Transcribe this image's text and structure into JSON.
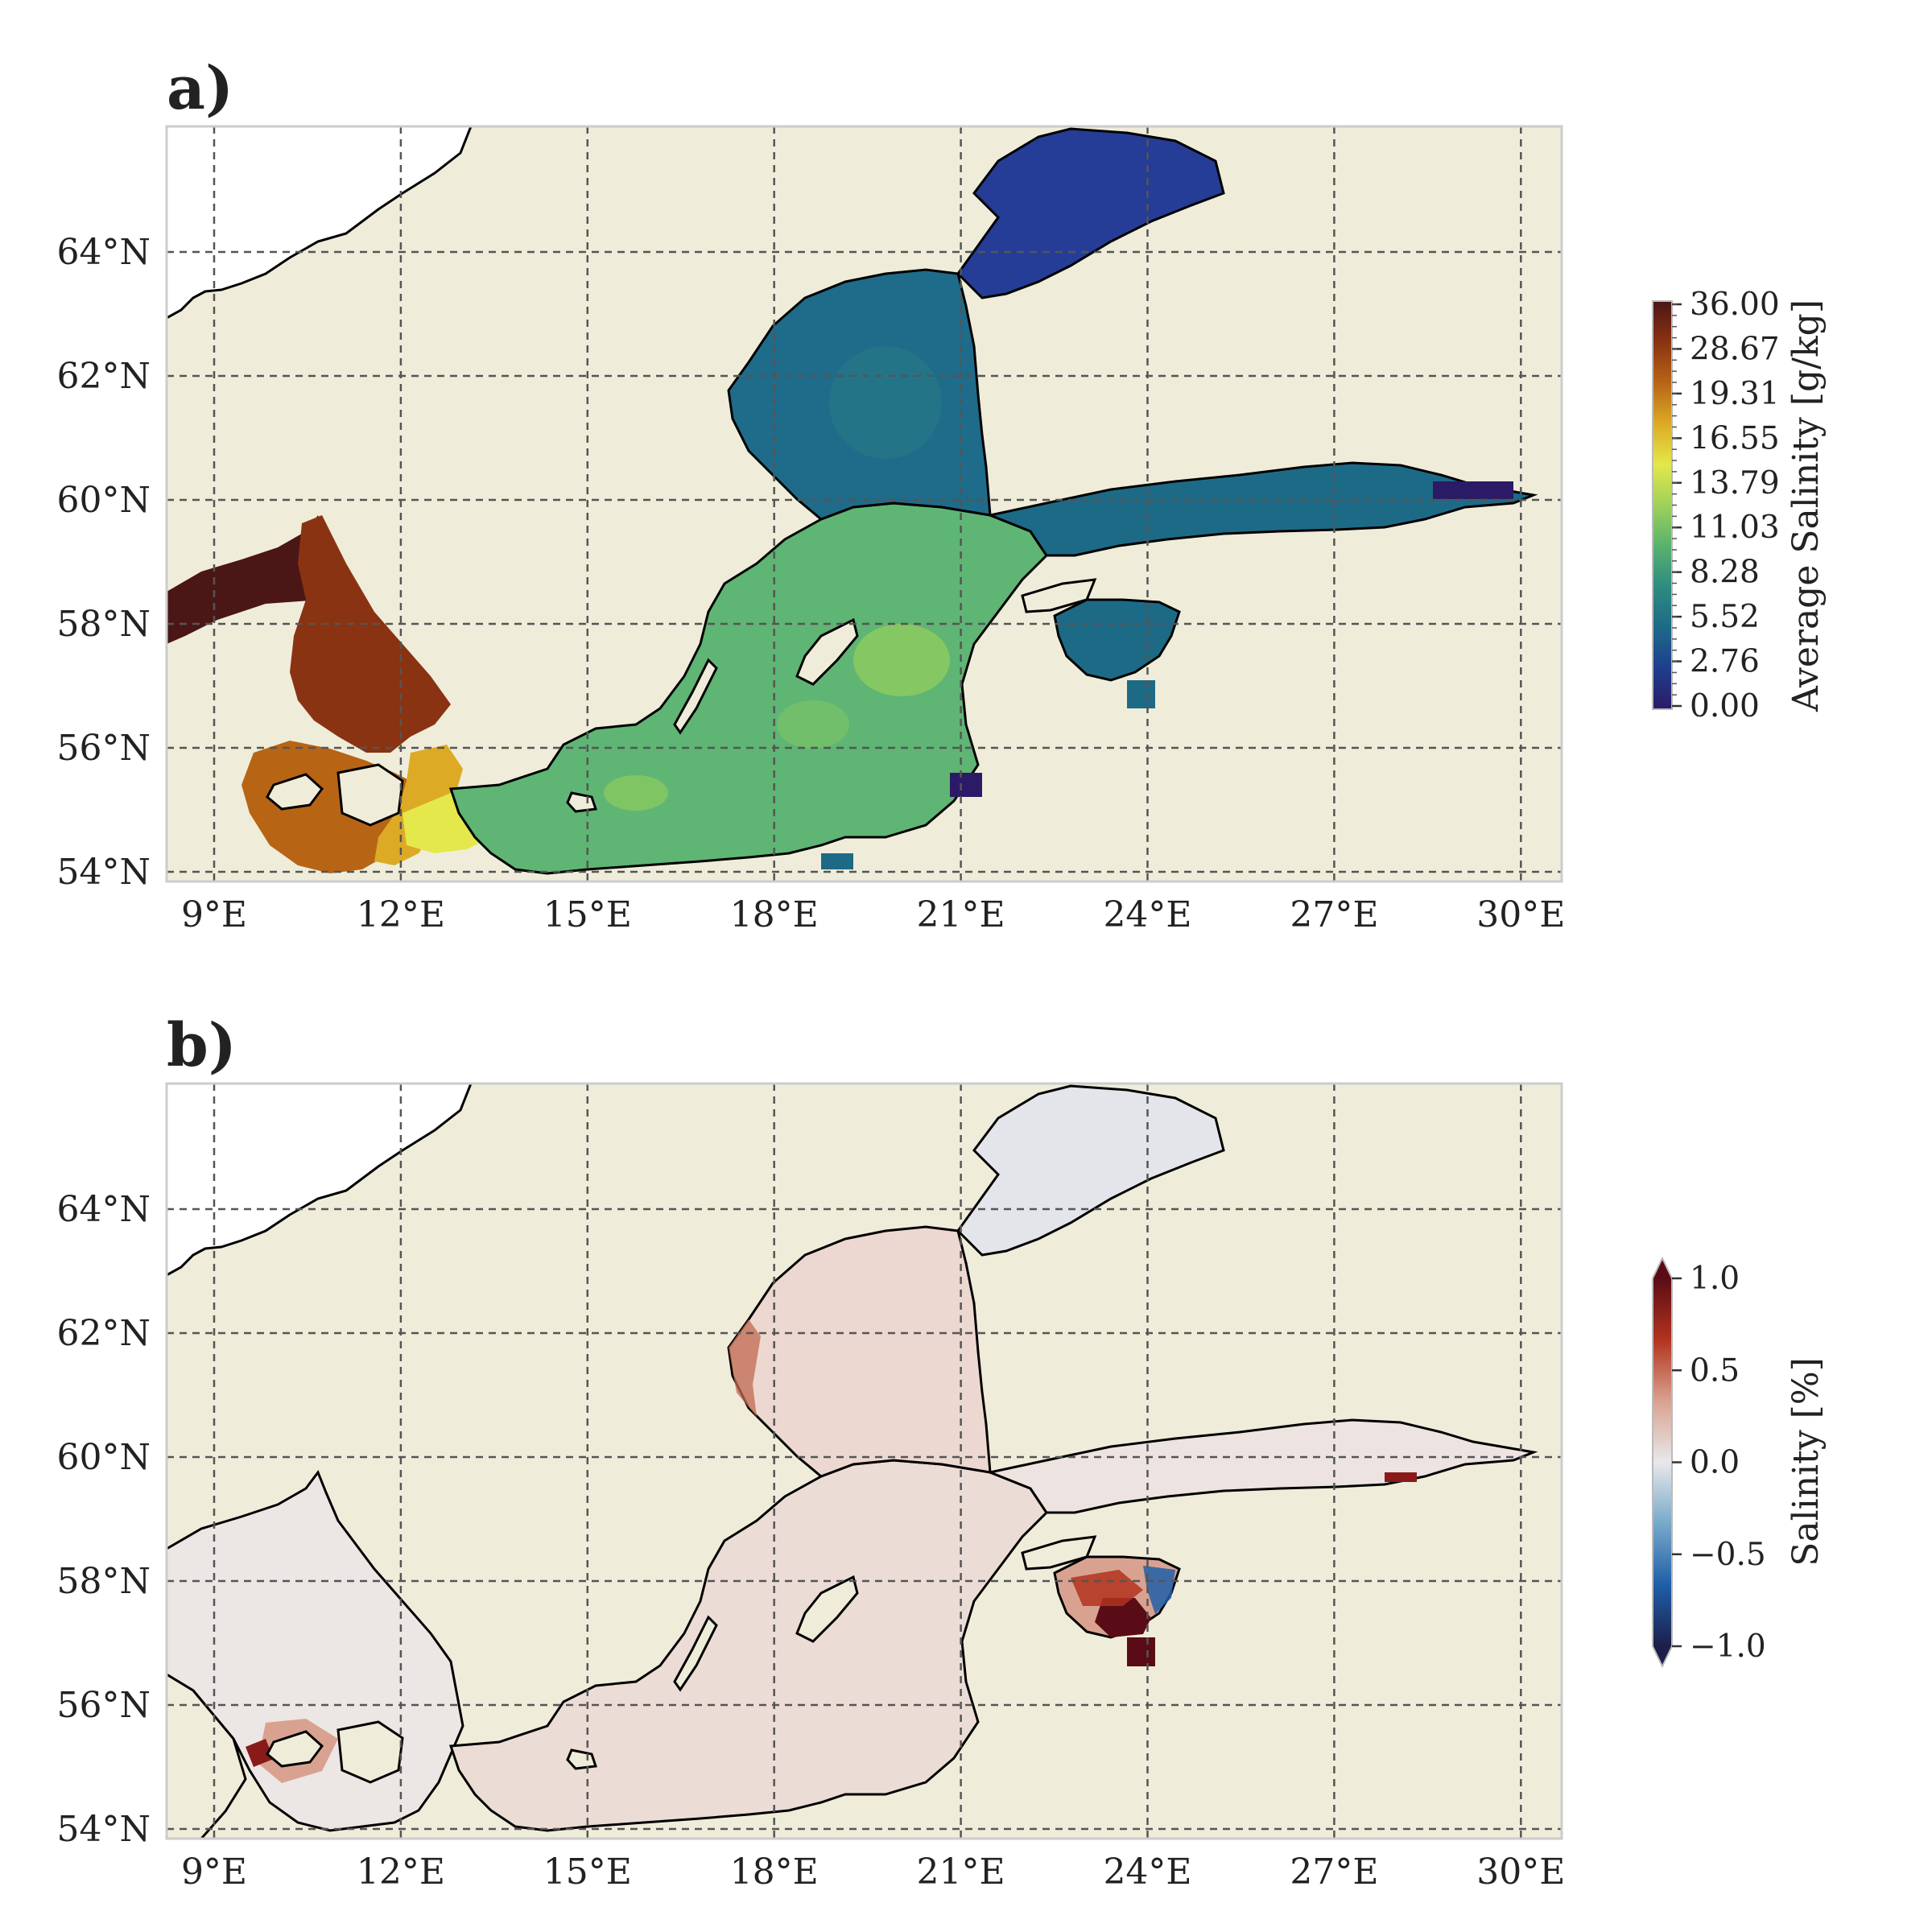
{
  "panels": [
    {
      "label": "a)",
      "x_ticks": [
        "9°E",
        "12°E",
        "15°E",
        "18°E",
        "21°E",
        "24°E",
        "27°E",
        "30°E"
      ],
      "y_ticks": [
        "64°N",
        "62°N",
        "60°N",
        "58°N",
        "56°N",
        "54°N"
      ],
      "colorbar": {
        "label": "Average Salinity [g/kg]",
        "ticks": [
          "36.00",
          "28.67",
          "19.31",
          "16.55",
          "13.79",
          "11.03",
          "8.28",
          "5.52",
          "2.76",
          "0.00"
        ],
        "colors": [
          "#2b1a66",
          "#1f3e8f",
          "#1d6a87",
          "#2d8c80",
          "#58b26e",
          "#9ed15a",
          "#e4e84a",
          "#dcaa25",
          "#b86415",
          "#8a3312",
          "#4b1616"
        ]
      }
    },
    {
      "label": "b)",
      "x_ticks": [
        "9°E",
        "12°E",
        "15°E",
        "18°E",
        "21°E",
        "24°E",
        "27°E",
        "30°E"
      ],
      "y_ticks": [
        "64°N",
        "62°N",
        "60°N",
        "58°N",
        "56°N",
        "54°N"
      ],
      "colorbar": {
        "label": "Salinity [%]",
        "ticks": [
          "1.0",
          "0.5",
          "0.0",
          "−0.5",
          "−1.0"
        ],
        "colors": [
          "#1c1f4a",
          "#1f5fa8",
          "#78a9c9",
          "#e8e8ea",
          "#d9a290",
          "#b2331e",
          "#5a0c16"
        ]
      }
    }
  ],
  "colors": {
    "land": "#efedda",
    "grid": "#555555",
    "coast": "#000000"
  }
}
